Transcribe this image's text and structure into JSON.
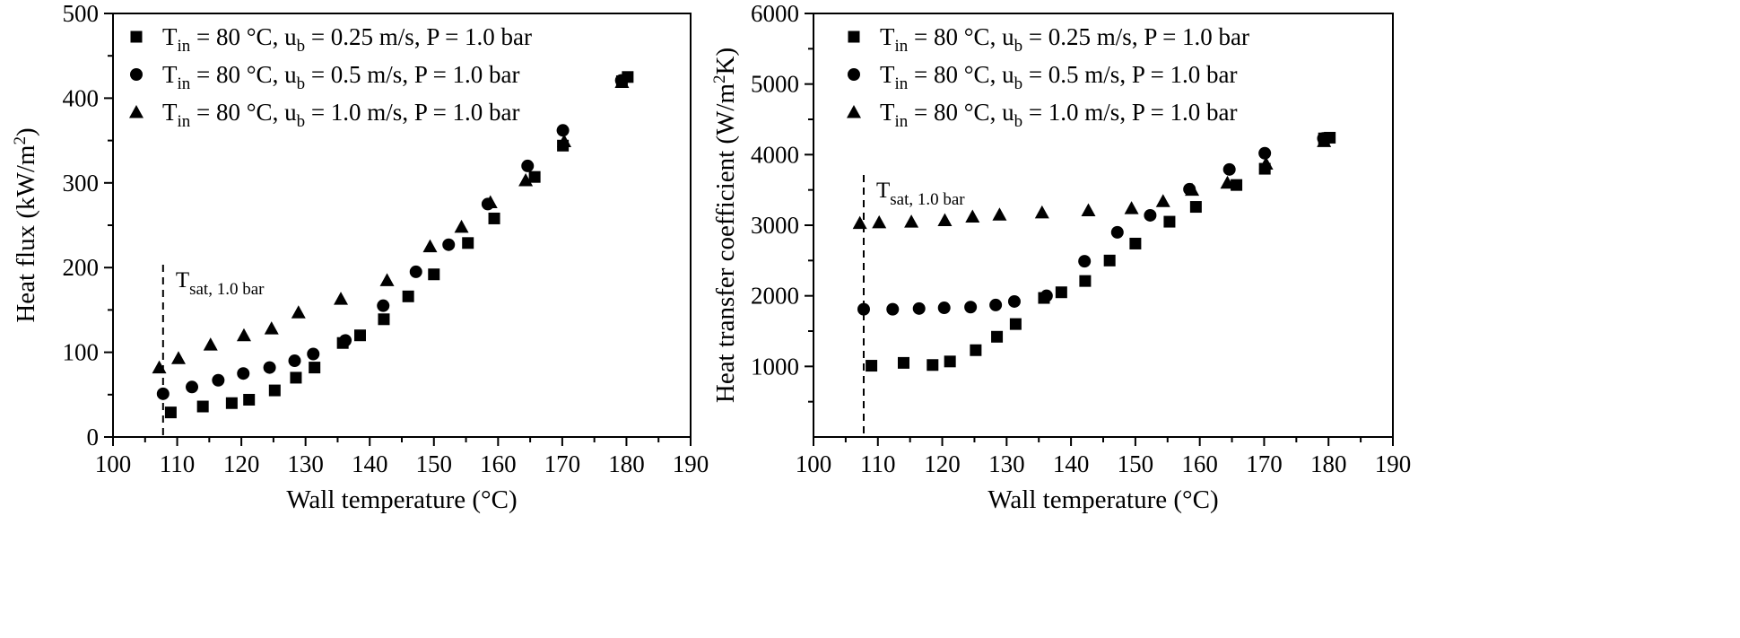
{
  "chart_data": [
    {
      "type": "scatter",
      "x_unit": "Wall temperature (°C)",
      "xlabel": "Wall temperature (°C)",
      "ylabel_main": "Heat flux (kW/m",
      "ylabel_sup": "2",
      "ylabel_end": ")",
      "xlim": [
        100,
        190
      ],
      "ylim": [
        0,
        500
      ],
      "xticks": [
        100,
        110,
        120,
        130,
        140,
        150,
        160,
        170,
        180,
        190
      ],
      "yticks": [
        0,
        100,
        200,
        300,
        400,
        500
      ],
      "annotation": {
        "main": "T",
        "sub": "sat, 1.0 bar",
        "x": 107.8
      },
      "legend_position": "top-left",
      "series": [
        {
          "marker": "square",
          "label": {
            "t": "T",
            "t_sub": "in",
            "mid": " = 80 °C, u",
            "u_sub": "b",
            "end": " = 0.25 m/s, P = 1.0 bar"
          },
          "x": [
            109,
            114,
            118.5,
            121.2,
            125.2,
            128.5,
            131.4,
            135.8,
            138.5,
            142.2,
            146,
            150,
            155.3,
            159.4,
            165.7,
            170.1,
            179.3,
            180.2
          ],
          "y": [
            29,
            36,
            40,
            44,
            55,
            70,
            82,
            111,
            120,
            139,
            166,
            192,
            229,
            258,
            307,
            344,
            420,
            425
          ]
        },
        {
          "marker": "circle",
          "label": {
            "t": "T",
            "t_sub": "in",
            "mid": " = 80 °C, u",
            "u_sub": "b",
            "end": " = 0.5 m/s, P = 1.0 bar"
          },
          "x": [
            107.8,
            112.3,
            116.4,
            120.3,
            124.4,
            128.3,
            131.2,
            136.2,
            142.1,
            147.2,
            152.3,
            158.4,
            164.6,
            170.1,
            179.2
          ],
          "y": [
            51,
            59,
            67,
            75,
            82,
            90,
            98,
            114,
            155,
            195,
            227,
            275,
            320,
            362,
            421
          ]
        },
        {
          "marker": "triangle",
          "label": {
            "t": "T",
            "t_sub": "in",
            "mid": " = 80 °C, u",
            "u_sub": "b",
            "end": " = 1.0 m/s, P = 1.0 bar"
          },
          "x": [
            107.2,
            110.2,
            115.2,
            120.4,
            124.7,
            128.9,
            135.5,
            142.7,
            149.4,
            154.3,
            158.8,
            164.3,
            170.3,
            179.3
          ],
          "y": [
            82,
            93,
            109,
            120,
            128,
            147,
            163,
            185,
            225,
            248,
            277,
            303,
            349,
            419
          ]
        }
      ]
    },
    {
      "type": "scatter",
      "xlabel": "Wall temperature (°C)",
      "ylabel_main": "Heat transfer coefficient (W/m",
      "ylabel_sup": "2",
      "ylabel_end": "K)",
      "xlim": [
        100,
        190
      ],
      "ylim": [
        0,
        6000
      ],
      "xticks": [
        100,
        110,
        120,
        130,
        140,
        150,
        160,
        170,
        180,
        190
      ],
      "yticks": [
        1000,
        2000,
        3000,
        4000,
        5000,
        6000
      ],
      "annotation": {
        "main": "T",
        "sub": "sat, 1.0 bar",
        "x": 107.8
      },
      "legend_position": "top-left",
      "series": [
        {
          "marker": "square",
          "label": {
            "t": "T",
            "t_sub": "in",
            "mid": " = 80 °C, u",
            "u_sub": "b",
            "end": " = 0.25 m/s, P = 1.0 bar"
          },
          "x": [
            109,
            114,
            118.5,
            121.2,
            125.2,
            128.5,
            131.4,
            135.8,
            138.5,
            142.2,
            146,
            150,
            155.3,
            159.4,
            165.7,
            170.1,
            179.3,
            180.2
          ],
          "y": [
            1010,
            1050,
            1020,
            1070,
            1230,
            1420,
            1600,
            1970,
            2050,
            2210,
            2500,
            2740,
            3050,
            3260,
            3570,
            3800,
            4230,
            4240
          ]
        },
        {
          "marker": "circle",
          "label": {
            "t": "T",
            "t_sub": "in",
            "mid": " = 80 °C, u",
            "u_sub": "b",
            "end": " = 0.5 m/s, P = 1.0 bar"
          },
          "x": [
            107.8,
            112.3,
            116.4,
            120.3,
            124.4,
            128.3,
            131.2,
            136.2,
            142.1,
            147.2,
            152.3,
            158.4,
            164.6,
            170.1,
            179.2
          ],
          "y": [
            1810,
            1810,
            1820,
            1830,
            1840,
            1870,
            1920,
            2000,
            2490,
            2900,
            3140,
            3510,
            3790,
            4020,
            4230
          ]
        },
        {
          "marker": "triangle",
          "label": {
            "t": "T",
            "t_sub": "in",
            "mid": " = 80 °C, u",
            "u_sub": "b",
            "end": " = 1.0 m/s, P = 1.0 bar"
          },
          "x": [
            107.2,
            110.2,
            115.2,
            120.4,
            124.7,
            128.9,
            135.5,
            142.7,
            149.4,
            154.3,
            158.8,
            164.3,
            170.3,
            179.3
          ],
          "y": [
            3030,
            3040,
            3050,
            3070,
            3120,
            3150,
            3180,
            3210,
            3240,
            3340,
            3500,
            3600,
            3870,
            4190
          ]
        }
      ]
    }
  ]
}
